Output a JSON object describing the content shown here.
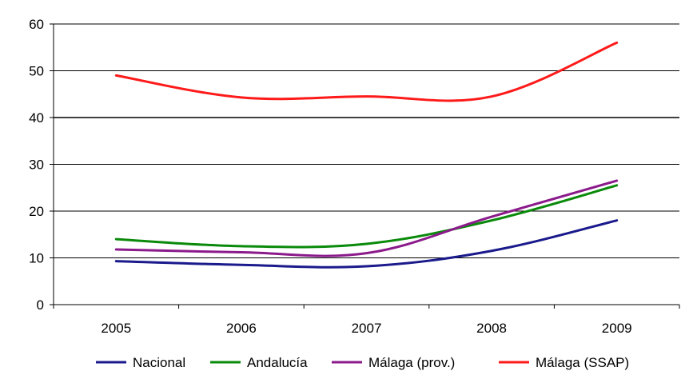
{
  "chart_data": {
    "type": "line",
    "title": "",
    "xlabel": "",
    "ylabel": "",
    "categories": [
      "2005",
      "2006",
      "2007",
      "2008",
      "2009"
    ],
    "ylim": [
      0,
      60
    ],
    "yticks": [
      0,
      10,
      20,
      30,
      40,
      50,
      60
    ],
    "grid": "horizontal",
    "legend_position": "bottom",
    "series": [
      {
        "name": "Nacional",
        "color": "#1a1a8c",
        "values": [
          9.3,
          8.5,
          8.2,
          11.5,
          18.0
        ]
      },
      {
        "name": "Andalucía",
        "color": "#0a8a0a",
        "values": [
          14.0,
          12.5,
          13.0,
          18.0,
          25.5
        ]
      },
      {
        "name": "Málaga (prov.)",
        "color": "#8b1a8b",
        "values": [
          11.8,
          11.2,
          11.0,
          18.8,
          26.5
        ]
      },
      {
        "name": "Málaga (SSAP)",
        "color": "#ff1a1a",
        "values": [
          49.0,
          44.3,
          44.5,
          44.5,
          56.0
        ]
      }
    ]
  }
}
